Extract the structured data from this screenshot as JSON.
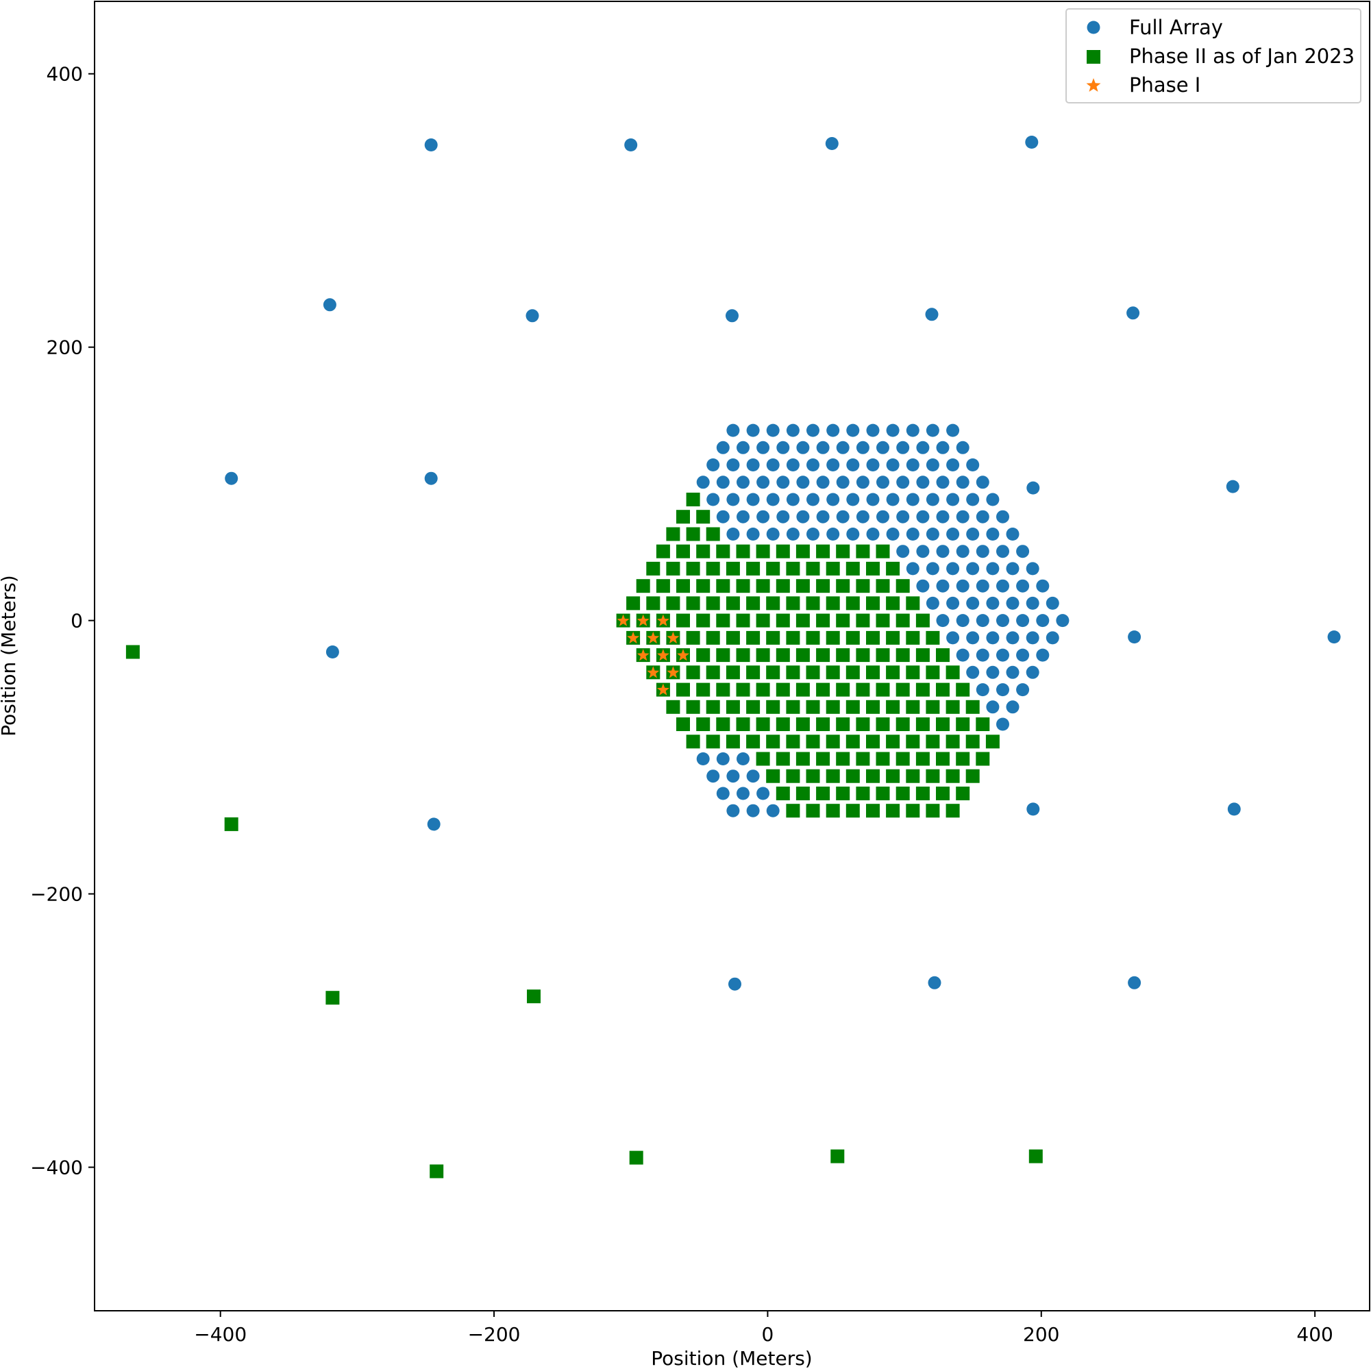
{
  "chart_data": {
    "type": "scatter",
    "title": "",
    "xlabel": "Position (Meters)",
    "ylabel": "Position (Meters)",
    "xlim": [
      -492,
      440
    ],
    "ylim": [
      -505,
      453
    ],
    "xticks": [
      -400,
      -200,
      0,
      200,
      400
    ],
    "yticks": [
      -400,
      -200,
      0,
      200,
      400
    ],
    "xtick_labels": [
      "−400",
      "−200",
      "0",
      "200",
      "400"
    ],
    "ytick_labels": [
      "−400",
      "−200",
      "0",
      "200",
      "400"
    ],
    "grid": false,
    "legend_position": "top-right",
    "note": "Core points of each series are generated in-script from a hexagonal lattice (origin (55,0); a=(14.6,0); b=(7.3,12.65)) using the index-region rules below; outriggers are listed explicitly.",
    "series": [
      {
        "name": "Full Array",
        "marker": "circle",
        "color": "#1f77b4",
        "outriggers": [
          [
            -246,
            348
          ],
          [
            -100,
            348
          ],
          [
            47,
            349
          ],
          [
            193,
            350
          ],
          [
            -320,
            231
          ],
          [
            -172,
            223
          ],
          [
            -26,
            223
          ],
          [
            120,
            224
          ],
          [
            267,
            225
          ],
          [
            -392,
            104
          ],
          [
            -246,
            104
          ],
          [
            194,
            97
          ],
          [
            340,
            98
          ],
          [
            -318,
            -23
          ],
          [
            268,
            -12
          ],
          [
            414,
            -12
          ],
          [
            -392,
            -149
          ],
          [
            -244,
            -149
          ],
          [
            194,
            -138
          ],
          [
            341,
            -138
          ],
          [
            -464,
            -23
          ],
          [
            -318,
            -276
          ],
          [
            -171,
            -275
          ],
          [
            -24,
            -266
          ],
          [
            122,
            -265
          ],
          [
            268,
            -265
          ],
          [
            -242,
            -403
          ],
          [
            -96,
            -393
          ],
          [
            51,
            -392
          ],
          [
            196,
            -392
          ]
        ]
      },
      {
        "name": "Phase II as of Jan 2023",
        "marker": "square",
        "color": "#008000",
        "outriggers": [
          [
            -464,
            -23
          ],
          [
            -392,
            -149
          ],
          [
            -318,
            -276
          ],
          [
            -171,
            -275
          ],
          [
            -242,
            -403
          ],
          [
            -96,
            -393
          ],
          [
            51,
            -392
          ],
          [
            196,
            -392
          ]
        ]
      },
      {
        "name": "Phase I",
        "marker": "star",
        "color": "#ff7f0e",
        "outriggers": []
      }
    ]
  }
}
